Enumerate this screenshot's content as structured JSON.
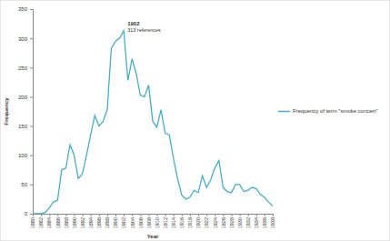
{
  "chart_data": {
    "type": "line",
    "x_label": "Year",
    "y_label": "Frequency",
    "x": [
      1880,
      1881,
      1882,
      1883,
      1884,
      1885,
      1886,
      1887,
      1888,
      1889,
      1890,
      1891,
      1892,
      1893,
      1894,
      1895,
      1896,
      1897,
      1898,
      1899,
      1900,
      1901,
      1902,
      1903,
      1904,
      1905,
      1906,
      1907,
      1908,
      1909,
      1910,
      1911,
      1912,
      1913,
      1914,
      1915,
      1916,
      1917,
      1918,
      1919,
      1920,
      1921,
      1922,
      1923,
      1924,
      1925,
      1926,
      1927,
      1928,
      1929,
      1930,
      1931,
      1932,
      1933,
      1934,
      1935,
      1936,
      1937,
      1938
    ],
    "series": [
      {
        "name": "Frequency of term \"smoke concert\"",
        "color": "#4bacc6",
        "values": [
          0,
          0,
          0,
          2,
          10,
          20,
          23,
          75,
          78,
          118,
          100,
          60,
          68,
          100,
          135,
          168,
          150,
          158,
          178,
          283,
          295,
          300,
          313,
          228,
          265,
          240,
          203,
          200,
          220,
          158,
          148,
          178,
          138,
          135,
          95,
          60,
          32,
          25,
          28,
          40,
          36,
          65,
          45,
          58,
          78,
          91,
          45,
          38,
          36,
          50,
          50,
          38,
          40,
          45,
          43,
          33,
          28,
          20,
          13
        ]
      }
    ],
    "xlim": [
      1880,
      1938
    ],
    "xticks": [
      1880,
      1882,
      1884,
      1886,
      1888,
      1890,
      1892,
      1894,
      1896,
      1898,
      1900,
      1902,
      1904,
      1906,
      1908,
      1910,
      1912,
      1914,
      1916,
      1918,
      1920,
      1922,
      1924,
      1926,
      1928,
      1930,
      1932,
      1934,
      1936,
      1938
    ],
    "ylim": [
      0,
      350
    ],
    "yticks": [
      0,
      50,
      100,
      150,
      200,
      250,
      300,
      350
    ],
    "grid": false,
    "legend": "right",
    "annotations": [
      {
        "x": 1902,
        "y": 313,
        "label": "1902",
        "detail": "313 references"
      }
    ]
  }
}
